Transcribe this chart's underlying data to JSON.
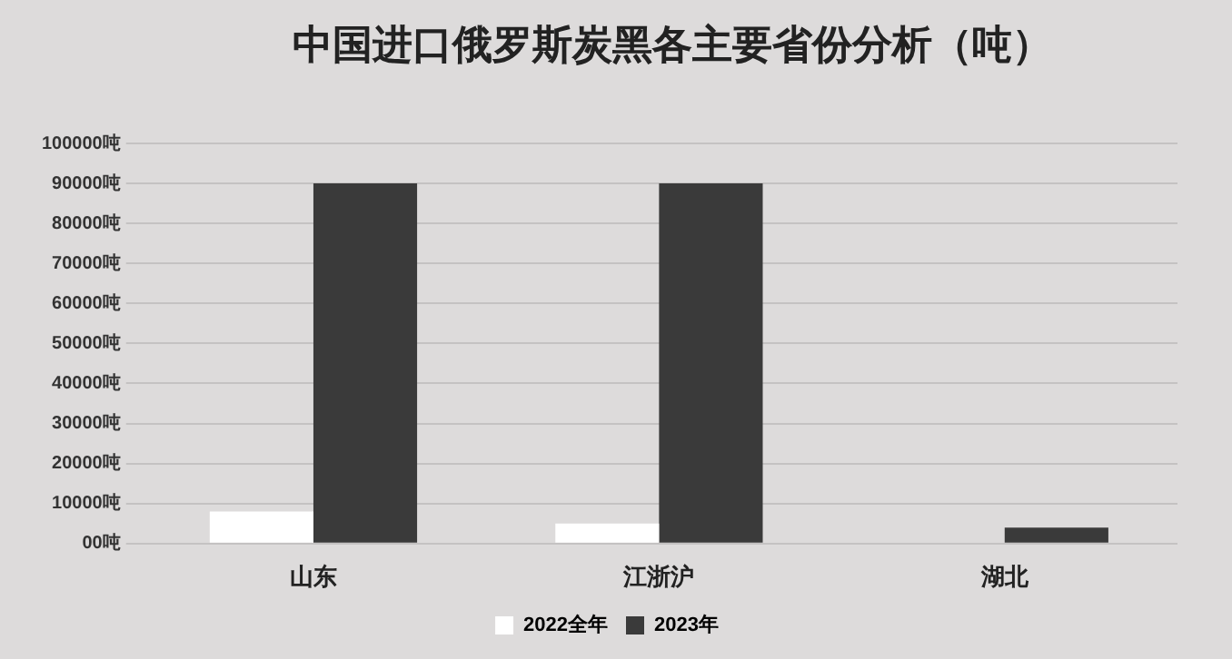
{
  "chart_data": {
    "type": "bar",
    "title": "中国进口俄罗斯炭黑各主要省份分析（吨）",
    "categories": [
      "山东",
      "江浙沪",
      "湖北"
    ],
    "series": [
      {
        "name": "2022全年",
        "color": "#ffffff",
        "values": [
          8000,
          5000,
          0
        ]
      },
      {
        "name": "2023年",
        "color": "#3a3a3a",
        "values": [
          90000,
          90000,
          4000
        ]
      }
    ],
    "ylim": [
      0,
      100000
    ],
    "yticks": [
      {
        "value": 0,
        "label": "00吨"
      },
      {
        "value": 10000,
        "label": "10000吨"
      },
      {
        "value": 20000,
        "label": "20000吨"
      },
      {
        "value": 30000,
        "label": "30000吨"
      },
      {
        "value": 40000,
        "label": "40000吨"
      },
      {
        "value": 50000,
        "label": "50000吨"
      },
      {
        "value": 60000,
        "label": "60000吨"
      },
      {
        "value": 70000,
        "label": "70000吨"
      },
      {
        "value": 80000,
        "label": "80000吨"
      },
      {
        "value": 90000,
        "label": "90000吨"
      },
      {
        "value": 100000,
        "label": "100000吨"
      }
    ],
    "grid": "y",
    "legend": "bottom"
  }
}
